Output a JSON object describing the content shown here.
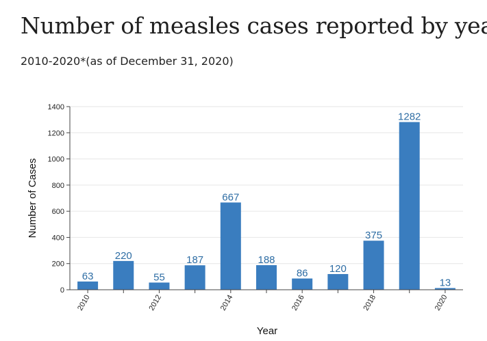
{
  "title": "Number of measles cases reported by year",
  "subtitle": "2010-2020*(as of December 31, 2020)",
  "colors": {
    "bar": "#3a7dbf",
    "label": "#2e6da4",
    "grid": "#e6e6e6",
    "axis": "#444444"
  },
  "chart_data": {
    "type": "bar",
    "categories": [
      "2010",
      "2011",
      "2012",
      "2013",
      "2014",
      "2015",
      "2016",
      "2017",
      "2018",
      "2019",
      "2020"
    ],
    "category_tick_labels": [
      "2010",
      "",
      "2012",
      "",
      "2014",
      "",
      "2016",
      "",
      "2018",
      "",
      "2020"
    ],
    "values": [
      63,
      220,
      55,
      187,
      667,
      188,
      86,
      120,
      375,
      1282,
      13
    ],
    "xlabel": "Year",
    "ylabel": "Number of Cases",
    "ylim": [
      0,
      1400
    ],
    "yticks": [
      0,
      200,
      400,
      600,
      800,
      1000,
      1200,
      1400
    ],
    "grid": true,
    "data_labels": true
  }
}
